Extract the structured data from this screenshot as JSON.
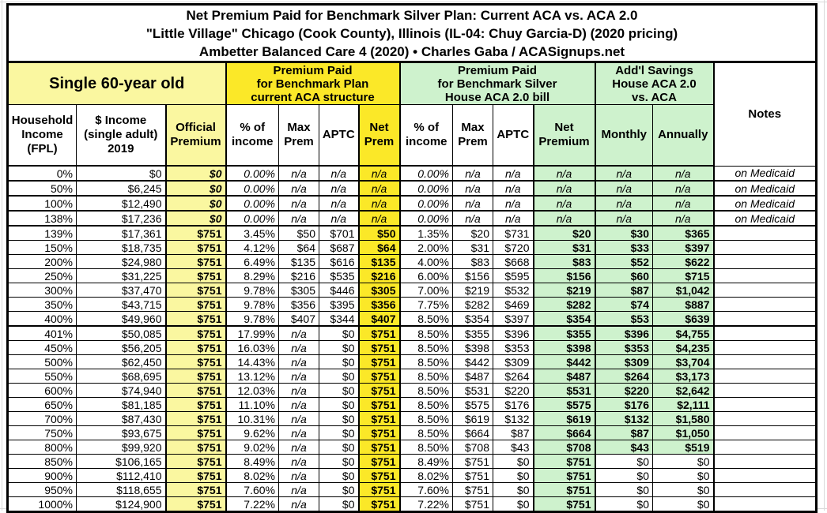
{
  "title": {
    "line1": "Net Premium Paid for Benchmark Silver Plan: Current ACA vs. ACA 2.0",
    "line2": "\"Little Village\" Chicago (Cook County), Illinois (IL-04: Chuy Garcia-D) (2020 pricing)",
    "line3": "Ambetter Balanced Care 4 (2020) • Charles Gaba / ACASignups.net"
  },
  "header": {
    "person": "Single 60-year old",
    "aca_group": "Premium Paid\nfor Benchmark Plan\ncurrent ACA structure",
    "aca2_group": "Premium Paid\nfor Benchmark Silver\nHouse ACA 2.0 bill",
    "savings_group": "Add'l Savings\nHouse ACA 2.0\nvs. ACA",
    "notes_label": "Notes",
    "cols": {
      "fpl": "Household\nIncome\n(FPL)",
      "income": "$ Income\n(single adult)\n2019",
      "official": "Official\nPremium",
      "pct1": "% of\nincome",
      "max1": "Max\nPrem",
      "aptc1": "APTC",
      "net1": "Net\nPrem",
      "pct2": "% of\nincome",
      "max2": "Max\nPrem",
      "aptc2": "APTC",
      "net2": "Net\nPremium",
      "monthly": "Monthly",
      "annually": "Annually"
    }
  },
  "colors": {
    "bright_yellow": "#fbe828",
    "pale_yellow": "#faf7a0",
    "light_green": "#cef2cd",
    "border_black": "#000000"
  },
  "rows": [
    {
      "medicaid": true,
      "fpl": "0%",
      "income": "$0",
      "official": "$0",
      "pct1": "0.00%",
      "max1": "n/a",
      "aptc1": "n/a",
      "net1": "n/a",
      "pct2": "0.00%",
      "max2": "n/a",
      "aptc2": "n/a",
      "net2": "n/a",
      "monthly": "n/a",
      "annually": "n/a",
      "notes": "on Medicaid"
    },
    {
      "medicaid": true,
      "fpl": "50%",
      "income": "$6,245",
      "official": "$0",
      "pct1": "0.00%",
      "max1": "n/a",
      "aptc1": "n/a",
      "net1": "n/a",
      "pct2": "0.00%",
      "max2": "n/a",
      "aptc2": "n/a",
      "net2": "n/a",
      "monthly": "n/a",
      "annually": "n/a",
      "notes": "on Medicaid"
    },
    {
      "medicaid": true,
      "fpl": "100%",
      "income": "$12,490",
      "official": "$0",
      "pct1": "0.00%",
      "max1": "n/a",
      "aptc1": "n/a",
      "net1": "n/a",
      "pct2": "0.00%",
      "max2": "n/a",
      "aptc2": "n/a",
      "net2": "n/a",
      "monthly": "n/a",
      "annually": "n/a",
      "notes": "on Medicaid"
    },
    {
      "medicaid": true,
      "fpl": "138%",
      "income": "$17,236",
      "official": "$0",
      "pct1": "0.00%",
      "max1": "n/a",
      "aptc1": "n/a",
      "net1": "n/a",
      "pct2": "0.00%",
      "max2": "n/a",
      "aptc2": "n/a",
      "net2": "n/a",
      "monthly": "n/a",
      "annually": "n/a",
      "notes": "on Medicaid"
    },
    {
      "fpl": "139%",
      "income": "$17,361",
      "official": "$751",
      "pct1": "3.45%",
      "max1": "$50",
      "aptc1": "$701",
      "net1": "$50",
      "pct2": "1.35%",
      "max2": "$20",
      "aptc2": "$731",
      "net2": "$20",
      "monthly": "$30",
      "annually": "$365",
      "notes": ""
    },
    {
      "fpl": "150%",
      "income": "$18,735",
      "official": "$751",
      "pct1": "4.12%",
      "max1": "$64",
      "aptc1": "$687",
      "net1": "$64",
      "pct2": "2.00%",
      "max2": "$31",
      "aptc2": "$720",
      "net2": "$31",
      "monthly": "$33",
      "annually": "$397",
      "notes": ""
    },
    {
      "fpl": "200%",
      "income": "$24,980",
      "official": "$751",
      "pct1": "6.49%",
      "max1": "$135",
      "aptc1": "$616",
      "net1": "$135",
      "pct2": "4.00%",
      "max2": "$83",
      "aptc2": "$668",
      "net2": "$83",
      "monthly": "$52",
      "annually": "$622",
      "notes": ""
    },
    {
      "fpl": "250%",
      "income": "$31,225",
      "official": "$751",
      "pct1": "8.29%",
      "max1": "$216",
      "aptc1": "$535",
      "net1": "$216",
      "pct2": "6.00%",
      "max2": "$156",
      "aptc2": "$595",
      "net2": "$156",
      "monthly": "$60",
      "annually": "$715",
      "notes": ""
    },
    {
      "fpl": "300%",
      "income": "$37,470",
      "official": "$751",
      "pct1": "9.78%",
      "max1": "$305",
      "aptc1": "$446",
      "net1": "$305",
      "pct2": "7.00%",
      "max2": "$219",
      "aptc2": "$532",
      "net2": "$219",
      "monthly": "$87",
      "annually": "$1,042",
      "notes": ""
    },
    {
      "fpl": "350%",
      "income": "$43,715",
      "official": "$751",
      "pct1": "9.78%",
      "max1": "$356",
      "aptc1": "$395",
      "net1": "$356",
      "pct2": "7.75%",
      "max2": "$282",
      "aptc2": "$469",
      "net2": "$282",
      "monthly": "$74",
      "annually": "$887",
      "notes": ""
    },
    {
      "fpl": "400%",
      "income": "$49,960",
      "official": "$751",
      "pct1": "9.78%",
      "max1": "$407",
      "aptc1": "$344",
      "net1": "$407",
      "pct2": "8.50%",
      "max2": "$354",
      "aptc2": "$397",
      "net2": "$354",
      "monthly": "$53",
      "annually": "$639",
      "notes": ""
    },
    {
      "fpl": "401%",
      "income": "$50,085",
      "official": "$751",
      "pct1": "17.99%",
      "max1": "n/a",
      "aptc1": "$0",
      "net1": "$751",
      "pct2": "8.50%",
      "max2": "$355",
      "aptc2": "$396",
      "net2": "$355",
      "monthly": "$396",
      "annually": "$4,755",
      "notes": ""
    },
    {
      "fpl": "450%",
      "income": "$56,205",
      "official": "$751",
      "pct1": "16.03%",
      "max1": "n/a",
      "aptc1": "$0",
      "net1": "$751",
      "pct2": "8.50%",
      "max2": "$398",
      "aptc2": "$353",
      "net2": "$398",
      "monthly": "$353",
      "annually": "$4,235",
      "notes": ""
    },
    {
      "fpl": "500%",
      "income": "$62,450",
      "official": "$751",
      "pct1": "14.43%",
      "max1": "n/a",
      "aptc1": "$0",
      "net1": "$751",
      "pct2": "8.50%",
      "max2": "$442",
      "aptc2": "$309",
      "net2": "$442",
      "monthly": "$309",
      "annually": "$3,704",
      "notes": ""
    },
    {
      "fpl": "550%",
      "income": "$68,695",
      "official": "$751",
      "pct1": "13.12%",
      "max1": "n/a",
      "aptc1": "$0",
      "net1": "$751",
      "pct2": "8.50%",
      "max2": "$487",
      "aptc2": "$264",
      "net2": "$487",
      "monthly": "$264",
      "annually": "$3,173",
      "notes": ""
    },
    {
      "fpl": "600%",
      "income": "$74,940",
      "official": "$751",
      "pct1": "12.03%",
      "max1": "n/a",
      "aptc1": "$0",
      "net1": "$751",
      "pct2": "8.50%",
      "max2": "$531",
      "aptc2": "$220",
      "net2": "$531",
      "monthly": "$220",
      "annually": "$2,642",
      "notes": ""
    },
    {
      "fpl": "650%",
      "income": "$81,185",
      "official": "$751",
      "pct1": "11.10%",
      "max1": "n/a",
      "aptc1": "$0",
      "net1": "$751",
      "pct2": "8.50%",
      "max2": "$575",
      "aptc2": "$176",
      "net2": "$575",
      "monthly": "$176",
      "annually": "$2,111",
      "notes": ""
    },
    {
      "fpl": "700%",
      "income": "$87,430",
      "official": "$751",
      "pct1": "10.31%",
      "max1": "n/a",
      "aptc1": "$0",
      "net1": "$751",
      "pct2": "8.50%",
      "max2": "$619",
      "aptc2": "$132",
      "net2": "$619",
      "monthly": "$132",
      "annually": "$1,580",
      "notes": ""
    },
    {
      "fpl": "750%",
      "income": "$93,675",
      "official": "$751",
      "pct1": "9.62%",
      "max1": "n/a",
      "aptc1": "$0",
      "net1": "$751",
      "pct2": "8.50%",
      "max2": "$664",
      "aptc2": "$87",
      "net2": "$664",
      "monthly": "$87",
      "annually": "$1,050",
      "notes": ""
    },
    {
      "fpl": "800%",
      "income": "$99,920",
      "official": "$751",
      "pct1": "9.02%",
      "max1": "n/a",
      "aptc1": "$0",
      "net1": "$751",
      "pct2": "8.50%",
      "max2": "$708",
      "aptc2": "$43",
      "net2": "$708",
      "monthly": "$43",
      "annually": "$519",
      "notes": ""
    },
    {
      "fpl": "850%",
      "income": "$106,165",
      "official": "$751",
      "pct1": "8.49%",
      "max1": "n/a",
      "aptc1": "$0",
      "net1": "$751",
      "pct2": "8.49%",
      "max2": "$751",
      "aptc2": "$0",
      "net2": "$751",
      "monthly": "$0",
      "annually": "$0",
      "notes": ""
    },
    {
      "fpl": "900%",
      "income": "$112,410",
      "official": "$751",
      "pct1": "8.02%",
      "max1": "n/a",
      "aptc1": "$0",
      "net1": "$751",
      "pct2": "8.02%",
      "max2": "$751",
      "aptc2": "$0",
      "net2": "$751",
      "monthly": "$0",
      "annually": "$0",
      "notes": ""
    },
    {
      "fpl": "950%",
      "income": "$118,655",
      "official": "$751",
      "pct1": "7.60%",
      "max1": "n/a",
      "aptc1": "$0",
      "net1": "$751",
      "pct2": "7.60%",
      "max2": "$751",
      "aptc2": "$0",
      "net2": "$751",
      "monthly": "$0",
      "annually": "$0",
      "notes": ""
    },
    {
      "fpl": "1000%",
      "income": "$124,900",
      "official": "$751",
      "pct1": "7.22%",
      "max1": "n/a",
      "aptc1": "$0",
      "net1": "$751",
      "pct2": "7.22%",
      "max2": "$751",
      "aptc2": "$0",
      "net2": "$751",
      "monthly": "$0",
      "annually": "$0",
      "notes": ""
    }
  ]
}
